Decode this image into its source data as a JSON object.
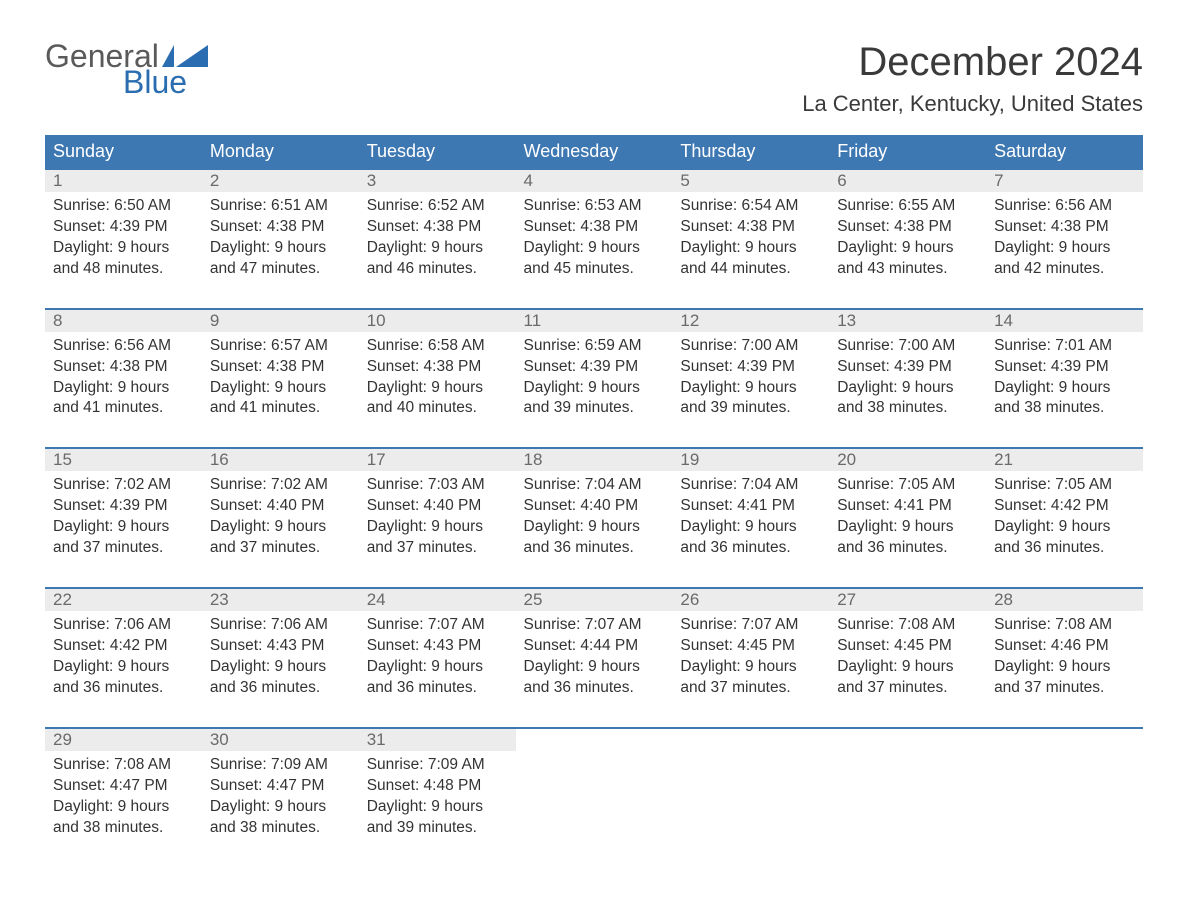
{
  "logo": {
    "word1": "General",
    "word2": "Blue"
  },
  "title": "December 2024",
  "subtitle": "La Center, Kentucky, United States",
  "columns": [
    "Sunday",
    "Monday",
    "Tuesday",
    "Wednesday",
    "Thursday",
    "Friday",
    "Saturday"
  ],
  "colors": {
    "header_bg": "#3e78b3",
    "header_text": "#ffffff",
    "daynum_bg": "#ececec",
    "daynum_text": "#6a6a6a",
    "body_text": "#333333",
    "logo_gray": "#5a5a5a",
    "logo_blue": "#2a6db0",
    "rule": "#3e78b3",
    "background": "#ffffff"
  },
  "typography": {
    "title_fontsize": 40,
    "subtitle_fontsize": 22,
    "header_fontsize": 18,
    "daynum_fontsize": 17,
    "cell_fontsize": 15.5,
    "logo_fontsize": 32
  },
  "weeks": [
    [
      {
        "n": "1",
        "sr": "Sunrise: 6:50 AM",
        "ss": "Sunset: 4:39 PM",
        "d1": "Daylight: 9 hours",
        "d2": "and 48 minutes."
      },
      {
        "n": "2",
        "sr": "Sunrise: 6:51 AM",
        "ss": "Sunset: 4:38 PM",
        "d1": "Daylight: 9 hours",
        "d2": "and 47 minutes."
      },
      {
        "n": "3",
        "sr": "Sunrise: 6:52 AM",
        "ss": "Sunset: 4:38 PM",
        "d1": "Daylight: 9 hours",
        "d2": "and 46 minutes."
      },
      {
        "n": "4",
        "sr": "Sunrise: 6:53 AM",
        "ss": "Sunset: 4:38 PM",
        "d1": "Daylight: 9 hours",
        "d2": "and 45 minutes."
      },
      {
        "n": "5",
        "sr": "Sunrise: 6:54 AM",
        "ss": "Sunset: 4:38 PM",
        "d1": "Daylight: 9 hours",
        "d2": "and 44 minutes."
      },
      {
        "n": "6",
        "sr": "Sunrise: 6:55 AM",
        "ss": "Sunset: 4:38 PM",
        "d1": "Daylight: 9 hours",
        "d2": "and 43 minutes."
      },
      {
        "n": "7",
        "sr": "Sunrise: 6:56 AM",
        "ss": "Sunset: 4:38 PM",
        "d1": "Daylight: 9 hours",
        "d2": "and 42 minutes."
      }
    ],
    [
      {
        "n": "8",
        "sr": "Sunrise: 6:56 AM",
        "ss": "Sunset: 4:38 PM",
        "d1": "Daylight: 9 hours",
        "d2": "and 41 minutes."
      },
      {
        "n": "9",
        "sr": "Sunrise: 6:57 AM",
        "ss": "Sunset: 4:38 PM",
        "d1": "Daylight: 9 hours",
        "d2": "and 41 minutes."
      },
      {
        "n": "10",
        "sr": "Sunrise: 6:58 AM",
        "ss": "Sunset: 4:38 PM",
        "d1": "Daylight: 9 hours",
        "d2": "and 40 minutes."
      },
      {
        "n": "11",
        "sr": "Sunrise: 6:59 AM",
        "ss": "Sunset: 4:39 PM",
        "d1": "Daylight: 9 hours",
        "d2": "and 39 minutes."
      },
      {
        "n": "12",
        "sr": "Sunrise: 7:00 AM",
        "ss": "Sunset: 4:39 PM",
        "d1": "Daylight: 9 hours",
        "d2": "and 39 minutes."
      },
      {
        "n": "13",
        "sr": "Sunrise: 7:00 AM",
        "ss": "Sunset: 4:39 PM",
        "d1": "Daylight: 9 hours",
        "d2": "and 38 minutes."
      },
      {
        "n": "14",
        "sr": "Sunrise: 7:01 AM",
        "ss": "Sunset: 4:39 PM",
        "d1": "Daylight: 9 hours",
        "d2": "and 38 minutes."
      }
    ],
    [
      {
        "n": "15",
        "sr": "Sunrise: 7:02 AM",
        "ss": "Sunset: 4:39 PM",
        "d1": "Daylight: 9 hours",
        "d2": "and 37 minutes."
      },
      {
        "n": "16",
        "sr": "Sunrise: 7:02 AM",
        "ss": "Sunset: 4:40 PM",
        "d1": "Daylight: 9 hours",
        "d2": "and 37 minutes."
      },
      {
        "n": "17",
        "sr": "Sunrise: 7:03 AM",
        "ss": "Sunset: 4:40 PM",
        "d1": "Daylight: 9 hours",
        "d2": "and 37 minutes."
      },
      {
        "n": "18",
        "sr": "Sunrise: 7:04 AM",
        "ss": "Sunset: 4:40 PM",
        "d1": "Daylight: 9 hours",
        "d2": "and 36 minutes."
      },
      {
        "n": "19",
        "sr": "Sunrise: 7:04 AM",
        "ss": "Sunset: 4:41 PM",
        "d1": "Daylight: 9 hours",
        "d2": "and 36 minutes."
      },
      {
        "n": "20",
        "sr": "Sunrise: 7:05 AM",
        "ss": "Sunset: 4:41 PM",
        "d1": "Daylight: 9 hours",
        "d2": "and 36 minutes."
      },
      {
        "n": "21",
        "sr": "Sunrise: 7:05 AM",
        "ss": "Sunset: 4:42 PM",
        "d1": "Daylight: 9 hours",
        "d2": "and 36 minutes."
      }
    ],
    [
      {
        "n": "22",
        "sr": "Sunrise: 7:06 AM",
        "ss": "Sunset: 4:42 PM",
        "d1": "Daylight: 9 hours",
        "d2": "and 36 minutes."
      },
      {
        "n": "23",
        "sr": "Sunrise: 7:06 AM",
        "ss": "Sunset: 4:43 PM",
        "d1": "Daylight: 9 hours",
        "d2": "and 36 minutes."
      },
      {
        "n": "24",
        "sr": "Sunrise: 7:07 AM",
        "ss": "Sunset: 4:43 PM",
        "d1": "Daylight: 9 hours",
        "d2": "and 36 minutes."
      },
      {
        "n": "25",
        "sr": "Sunrise: 7:07 AM",
        "ss": "Sunset: 4:44 PM",
        "d1": "Daylight: 9 hours",
        "d2": "and 36 minutes."
      },
      {
        "n": "26",
        "sr": "Sunrise: 7:07 AM",
        "ss": "Sunset: 4:45 PM",
        "d1": "Daylight: 9 hours",
        "d2": "and 37 minutes."
      },
      {
        "n": "27",
        "sr": "Sunrise: 7:08 AM",
        "ss": "Sunset: 4:45 PM",
        "d1": "Daylight: 9 hours",
        "d2": "and 37 minutes."
      },
      {
        "n": "28",
        "sr": "Sunrise: 7:08 AM",
        "ss": "Sunset: 4:46 PM",
        "d1": "Daylight: 9 hours",
        "d2": "and 37 minutes."
      }
    ],
    [
      {
        "n": "29",
        "sr": "Sunrise: 7:08 AM",
        "ss": "Sunset: 4:47 PM",
        "d1": "Daylight: 9 hours",
        "d2": "and 38 minutes."
      },
      {
        "n": "30",
        "sr": "Sunrise: 7:09 AM",
        "ss": "Sunset: 4:47 PM",
        "d1": "Daylight: 9 hours",
        "d2": "and 38 minutes."
      },
      {
        "n": "31",
        "sr": "Sunrise: 7:09 AM",
        "ss": "Sunset: 4:48 PM",
        "d1": "Daylight: 9 hours",
        "d2": "and 39 minutes."
      },
      null,
      null,
      null,
      null
    ]
  ]
}
